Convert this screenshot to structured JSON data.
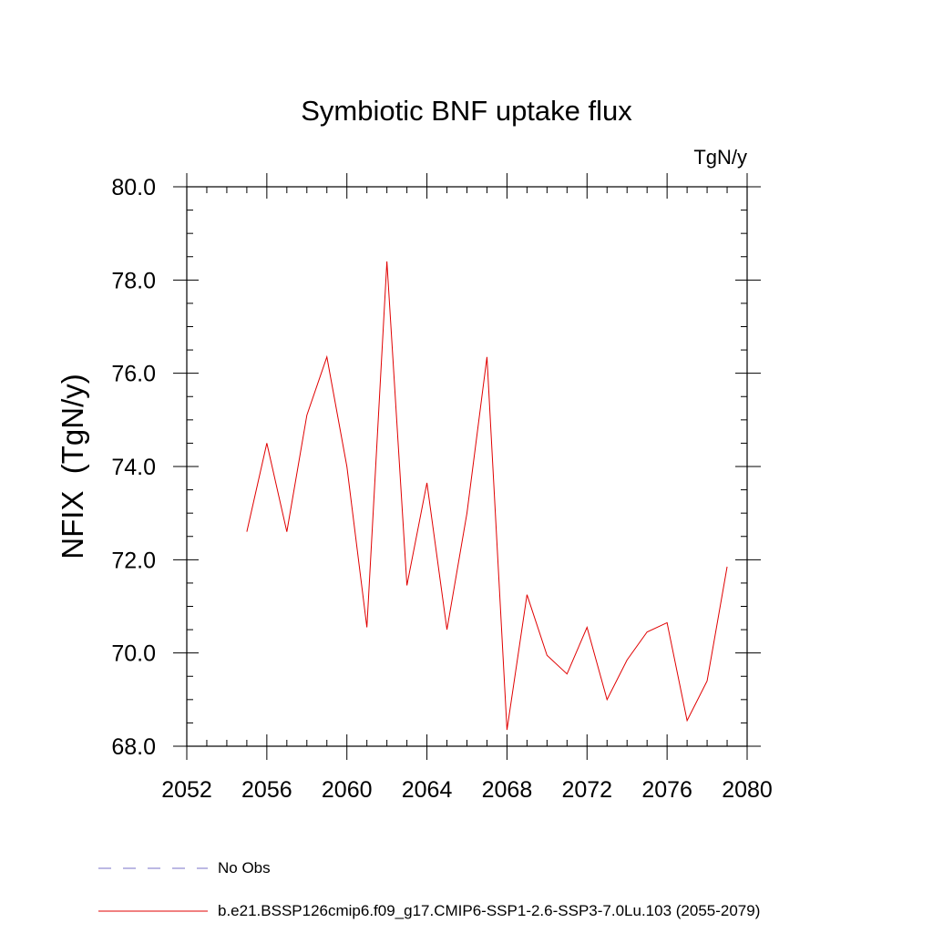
{
  "chart_data": {
    "type": "line",
    "title": "Symbiotic BNF uptake flux",
    "units_label": "TgN/y",
    "xlabel": "",
    "ylabel": "NFIX  (TgN/y)",
    "xlim": [
      2052,
      2080
    ],
    "ylim": [
      68.0,
      80.0
    ],
    "x_ticks": [
      2052,
      2056,
      2060,
      2064,
      2068,
      2072,
      2076,
      2080
    ],
    "x_tick_labels": [
      "2052",
      "2056",
      "2060",
      "2064",
      "2068",
      "2072",
      "2076",
      "2080"
    ],
    "y_ticks": [
      68.0,
      70.0,
      72.0,
      74.0,
      76.0,
      78.0,
      80.0
    ],
    "y_tick_labels": [
      "68.0",
      "70.0",
      "72.0",
      "74.0",
      "76.0",
      "78.0",
      "80.0"
    ],
    "x_minor_step": 1,
    "y_minor_step": 0.5,
    "grid": false,
    "series": [
      {
        "name": "b.e21.BSSP126cmip6.f09_g17.CMIP6-SSP1-2.6-SSP3-7.0Lu.103 (2055-2079)",
        "color": "#e00000",
        "x": [
          2055,
          2056,
          2057,
          2058,
          2059,
          2060,
          2061,
          2062,
          2063,
          2064,
          2065,
          2066,
          2067,
          2068,
          2069,
          2070,
          2071,
          2072,
          2073,
          2074,
          2075,
          2076,
          2077,
          2078,
          2079
        ],
        "values": [
          72.6,
          74.5,
          72.6,
          75.1,
          76.35,
          74.0,
          70.55,
          78.4,
          71.45,
          73.65,
          70.5,
          73.0,
          76.35,
          68.35,
          71.25,
          69.95,
          69.55,
          70.55,
          69.0,
          69.85,
          70.45,
          70.65,
          68.55,
          69.4,
          71.85
        ]
      }
    ],
    "legend": [
      {
        "label": "No Obs",
        "style": "dashed",
        "color": "#7a72c8"
      },
      {
        "label": "b.e21.BSSP126cmip6.f09_g17.CMIP6-SSP1-2.6-SSP3-7.0Lu.103 (2055-2079)",
        "style": "solid",
        "color": "#e00000"
      }
    ],
    "legend_position": "bottom-left"
  }
}
